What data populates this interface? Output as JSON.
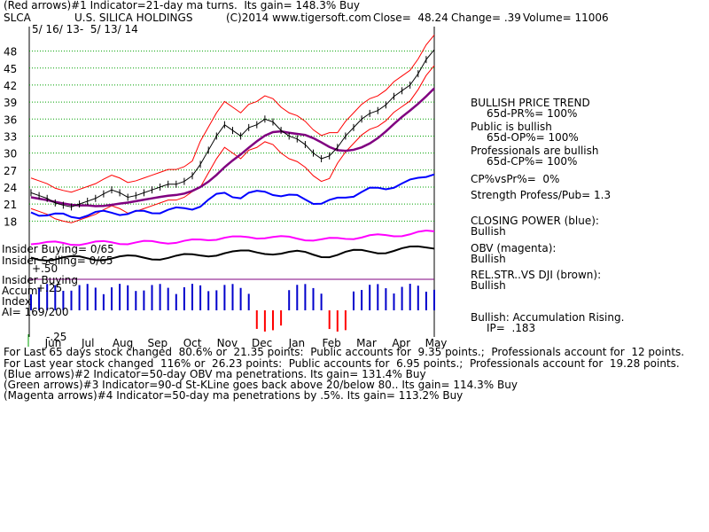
{
  "header": {
    "line1": "(Red arrows)#1 Indicator=21-day ma turns.  Its gain= 148.3% Buy",
    "ticker": "SLCA",
    "company": "U.S. SILICA HOLDINGS",
    "copyright": "(C)2014 www.tigersoft.com",
    "close": "Close=  48.24",
    "change": "Change= .39",
    "volume": "Volume= 11006",
    "date_range": "5/ 16/ 13-  5/ 13/ 14"
  },
  "right_panel": [
    {
      "title": "BULLISH PRICE TREND",
      "value": "65d-PR%= 100%"
    },
    {
      "title": "Public is bullish",
      "value": "65d-OP%= 100%"
    },
    {
      "title": "Professionals are bullish",
      "value": "65d-CP%= 100%"
    },
    {
      "title": "CP%vsPr%=  0%",
      "value": ""
    },
    {
      "title": "Strength Profess/Pub= 1.3",
      "value": ""
    },
    {
      "title": "CLOSING POWER (blue):",
      "value": "Bullish"
    },
    {
      "title": "OBV (magenta):",
      "value": "Bullish"
    },
    {
      "title": "REL.STR..VS DJI (brown):",
      "value": "Bullish"
    },
    {
      "title": "Bullish: Accumulation Rising.",
      "value": "IP=  .183"
    }
  ],
  "left_labels": {
    "insider_buying": "Insider Buying= 0/65",
    "insider_selling": "Insider Selling= 0/65",
    "insider_buying2": "Insider Buying",
    "accum": "Accum",
    "index": "Index",
    "ai": "AI= 169/200",
    "p50": "+.50",
    "p25": "+.25",
    "m25": "-.25"
  },
  "footer": [
    "For Last 65 days stock changed  80.6% or  21.35 points:  Public accounts for  9.35 points.;  Professionals account for  12 points.",
    "For Last year stock changed  116% or  26.23 points:  Public accounts for  6.95 points.;  Professionals account for  19.28 points.",
    "(Blue arrows)#2 Indicator=50-day OBV ma penetrations. Its gain= 131.4% Buy",
    "(Green arrows)#3 Indicator=90-d St-KLine goes back above 20/below 80.. Its gain= 114.3% Buy",
    "(Magenta arrows)#4 Indicator=50-day ma penetrations by .5%. Its gain= 113.2% Buy"
  ],
  "colors": {
    "price": "#000000",
    "ma_red": "#ff0000",
    "ma50": "#800080",
    "closing_power": "#0000ff",
    "obv": "#ff00ff",
    "relstr": "#000000",
    "grid": "#00a000",
    "accum": "#0000cc",
    "accum_neg": "#ff0000"
  },
  "chart_data": {
    "type": "line",
    "x_label_ticks": [
      "Jun",
      "Jul",
      "Aug",
      "Sep",
      "Oct",
      "Nov",
      "Dec",
      "Jan",
      "Feb",
      "Mar",
      "Apr",
      "May"
    ],
    "y_ticks": [
      48,
      45,
      42,
      39,
      36,
      33,
      30,
      27,
      24,
      21,
      18
    ],
    "ylim": [
      16.8,
      49.5
    ],
    "grid": true,
    "series": [
      {
        "values": [
          23,
          22.5,
          22,
          21.2,
          20.8,
          20.5,
          21,
          21.5,
          22,
          22.8,
          23.5,
          23,
          22.2,
          22.5,
          23,
          23.5,
          24,
          24.5,
          24.5,
          25,
          26,
          28,
          30.5,
          33,
          35,
          34,
          33,
          34.5,
          35,
          36,
          35.5,
          34,
          33,
          32.5,
          31.5,
          30,
          29,
          29.5,
          31,
          33,
          34.5,
          36,
          37,
          37.5,
          38.5,
          40,
          41,
          42,
          44,
          46.5,
          48.24
        ]
      }
    ]
  }
}
